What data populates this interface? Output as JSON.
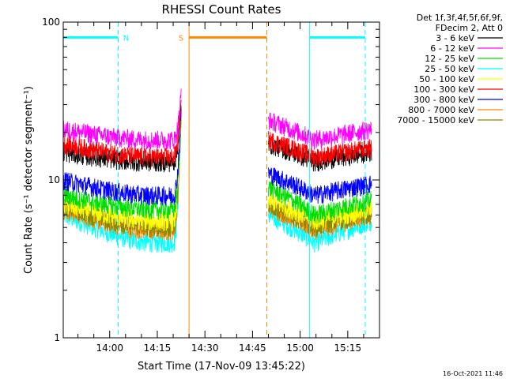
{
  "chart_data": {
    "type": "line",
    "title": "RHESSI Count Rates",
    "xlabel": "Start Time (17-Nov-09 13:45:22)",
    "ylabel": "Count Rate (s⁻¹ detector segment⁻¹)",
    "yscale": "log",
    "ylim": [
      1,
      100
    ],
    "xlim": [
      "13:45:22",
      "15:25:00"
    ],
    "y_ticks": [
      "1",
      "10",
      "100"
    ],
    "x_ticks": [
      "14:00",
      "14:15",
      "14:30",
      "14:45",
      "15:00",
      "15:15"
    ],
    "legend_header": [
      "Det 1f,3f,4f,5f,6f,9f,",
      "FDecim 2, Att 0"
    ],
    "legend_position": "top-right",
    "timestamp": "16-Oct-2021 11:46",
    "series": [
      {
        "name": "3 - 6 keV",
        "color": "#000000",
        "levels": {
          "seg1_start": 15,
          "seg1_mid": 13,
          "seg2_start": 17,
          "seg2_mid": 13,
          "seg2_end": 15
        }
      },
      {
        "name": "6 - 12 keV",
        "color": "#ff00ff",
        "levels": {
          "seg1_start": 21,
          "seg1_mid": 18,
          "seg2_start": 24,
          "seg2_mid": 18,
          "seg2_end": 21
        }
      },
      {
        "name": "12 - 25 keV",
        "color": "#00dd00",
        "levels": {
          "seg1_start": 8,
          "seg1_mid": 6.5,
          "seg2_start": 9,
          "seg2_mid": 6,
          "seg2_end": 7.5
        }
      },
      {
        "name": "25 - 50 keV",
        "color": "#00ffff",
        "levels": {
          "seg1_start": 6,
          "seg1_mid": 4,
          "seg2_start": 6,
          "seg2_mid": 4,
          "seg2_end": 5.5
        }
      },
      {
        "name": "50 - 100 keV",
        "color": "#ffff00",
        "levels": {
          "seg1_start": 7,
          "seg1_mid": 5.5,
          "seg2_start": 7.5,
          "seg2_mid": 5.5,
          "seg2_end": 6.5
        }
      },
      {
        "name": "100 - 300 keV",
        "color": "#ff0000",
        "levels": {
          "seg1_start": 17,
          "seg1_mid": 14,
          "seg2_start": 18,
          "seg2_mid": 14,
          "seg2_end": 16
        }
      },
      {
        "name": "300 - 800 keV",
        "color": "#0000ff",
        "levels": {
          "seg1_start": 10,
          "seg1_mid": 8,
          "seg2_start": 11,
          "seg2_mid": 8,
          "seg2_end": 9.5
        }
      },
      {
        "name": "800 - 7000 keV",
        "color": "#ff8800",
        "levels": {
          "seg1_start": 6.5,
          "seg1_mid": 4.8,
          "seg2_start": 6.8,
          "seg2_mid": 4.8,
          "seg2_end": 6
        }
      },
      {
        "name": "7000 - 15000 keV",
        "color": "#888800",
        "levels": {
          "seg1_start": 6.8,
          "seg1_mid": 5,
          "seg2_start": 7,
          "seg2_mid": 5,
          "seg2_end": 6.2
        }
      }
    ],
    "data_segments": [
      {
        "start": "13:45:22",
        "end": "14:22:30"
      },
      {
        "start": "14:50:00",
        "end": "15:22:30"
      }
    ],
    "flare_spike": {
      "time": "14:22:30",
      "peak": 35,
      "from": 9
    },
    "annotations": [
      {
        "label": "N",
        "color": "#00ffff",
        "style": "bar",
        "bar_start": "13:45:22",
        "bar_end": "14:02:40",
        "lines": [
          "13:45:22",
          "14:02:40"
        ],
        "line_style": "dashed"
      },
      {
        "label": "S",
        "color": "#ff8800",
        "style": "bar",
        "bar_start": "14:25:00",
        "bar_end": "14:49:30",
        "lines": [
          "14:25:00",
          "14:49:30"
        ],
        "line_style": "solid-then-dashed"
      },
      {
        "label": "",
        "color": "#00ffff",
        "style": "bar",
        "bar_start": "15:03:00",
        "bar_end": "15:20:30",
        "lines": [
          "15:03:00",
          "15:20:30"
        ],
        "line_style": "solid-then-dashed"
      }
    ],
    "annotation_level": 80
  }
}
